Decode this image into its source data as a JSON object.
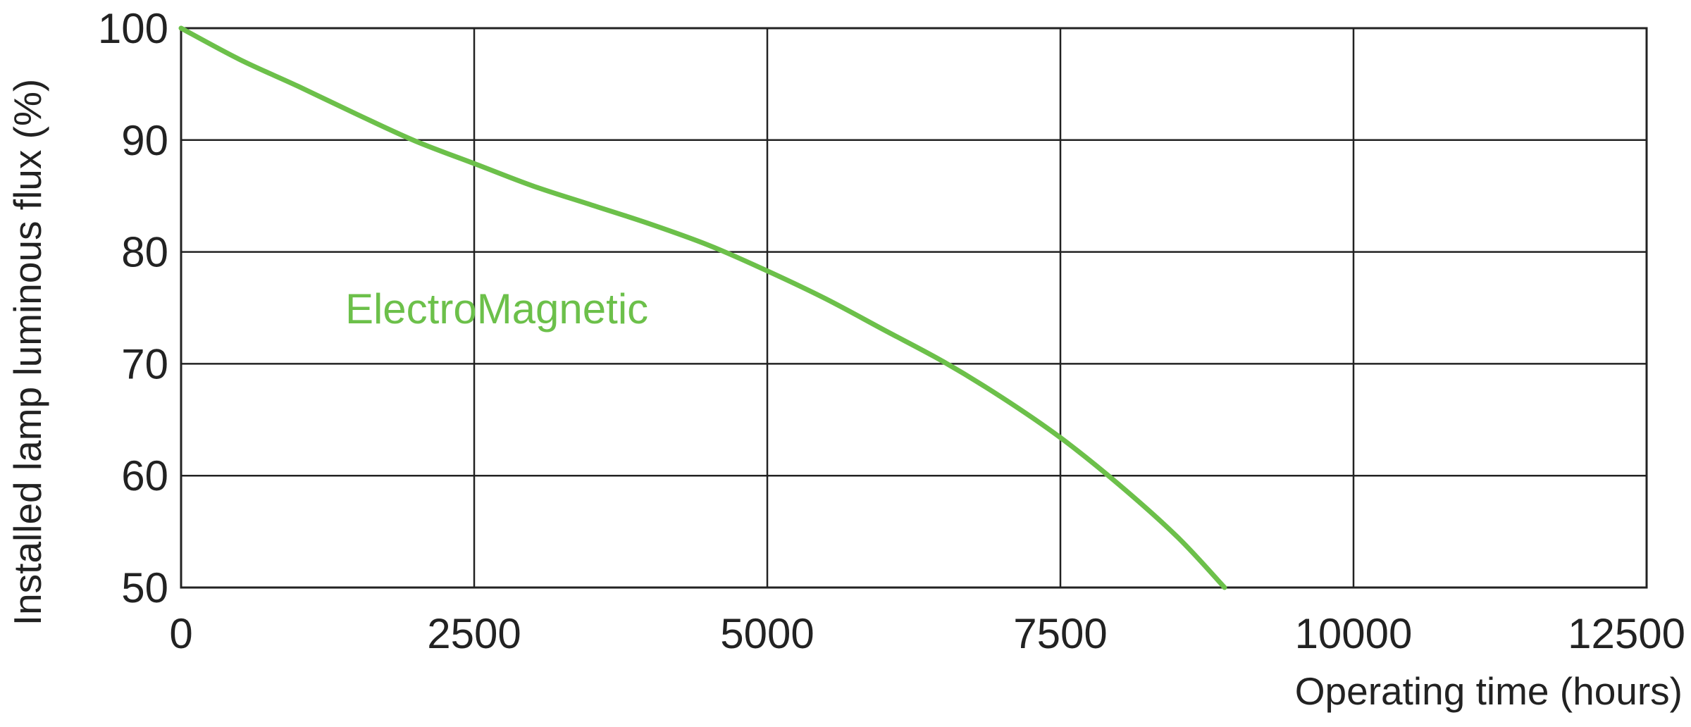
{
  "chart_data": {
    "type": "line",
    "xlabel": "Operating time (hours)",
    "ylabel": "Installed lamp luminous flux  (%)",
    "xlim": [
      0,
      12500
    ],
    "ylim": [
      50,
      100
    ],
    "xticks": [
      0,
      2500,
      5000,
      7500,
      10000,
      12500
    ],
    "yticks": [
      50,
      60,
      70,
      80,
      90,
      100
    ],
    "grid": true,
    "series": [
      {
        "name": "ElectroMagnetic",
        "color": "#6cc04a",
        "x": [
          0,
          500,
          1000,
          1500,
          2000,
          2500,
          3000,
          3500,
          4000,
          4500,
          5000,
          5500,
          6000,
          6500,
          7000,
          7500,
          8000,
          8500,
          8900
        ],
        "y": [
          100,
          97.2,
          94.8,
          92.3,
          89.9,
          87.9,
          85.9,
          84.2,
          82.5,
          80.6,
          78.3,
          75.8,
          73.0,
          70.2,
          67.0,
          63.4,
          59.2,
          54.5,
          50.0
        ]
      }
    ]
  }
}
